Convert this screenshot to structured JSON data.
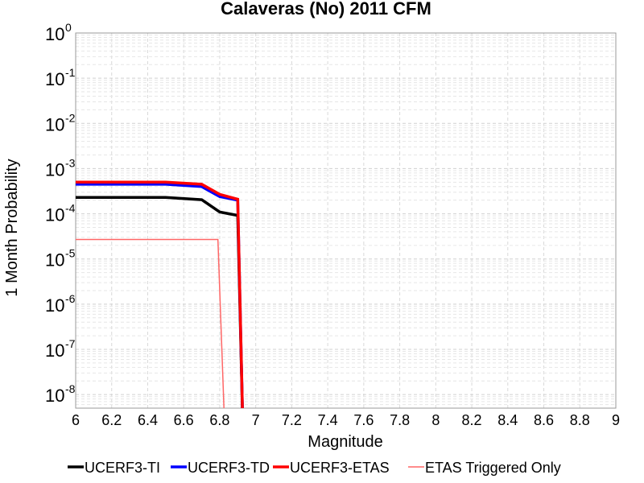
{
  "chart_data": {
    "type": "line",
    "title": "Calaveras (No) 2011 CFM",
    "xlabel": "Magnitude",
    "ylabel": "1 Month Probability",
    "xlim": [
      6,
      9
    ],
    "ylim_log10": [
      -8.3,
      0
    ],
    "y_scale": "log",
    "grid": true,
    "legend_position": "bottom",
    "x_ticks": [
      "6",
      "6.2",
      "6.4",
      "6.6",
      "6.8",
      "7",
      "7.2",
      "7.4",
      "7.6",
      "7.8",
      "8",
      "8.2",
      "8.4",
      "8.6",
      "8.8",
      "9"
    ],
    "y_ticks": [
      {
        "base": "10",
        "exp": "0"
      },
      {
        "base": "10",
        "exp": "-1"
      },
      {
        "base": "10",
        "exp": "-2"
      },
      {
        "base": "10",
        "exp": "-3"
      },
      {
        "base": "10",
        "exp": "-4"
      },
      {
        "base": "10",
        "exp": "-5"
      },
      {
        "base": "10",
        "exp": "-6"
      },
      {
        "base": "10",
        "exp": "-7"
      },
      {
        "base": "10",
        "exp": "-8"
      }
    ],
    "series": [
      {
        "name": "UCERF3-TI",
        "color": "#000000",
        "line_width": 3.5,
        "x": [
          6.0,
          6.5,
          6.7,
          6.8,
          6.9,
          6.93
        ],
        "y": [
          0.00023,
          0.00023,
          0.000205,
          0.00011,
          9.2e-05,
          1e-09
        ]
      },
      {
        "name": "UCERF3-TD",
        "color": "#0000ff",
        "line_width": 3.5,
        "x": [
          6.0,
          6.5,
          6.7,
          6.8,
          6.9,
          6.93
        ],
        "y": [
          0.00045,
          0.00045,
          0.0004,
          0.00024,
          0.0002,
          1e-09
        ]
      },
      {
        "name": "UCERF3-ETAS",
        "color": "#ff0000",
        "line_width": 3.5,
        "x": [
          6.0,
          6.5,
          6.7,
          6.8,
          6.9,
          6.93
        ],
        "y": [
          0.0005,
          0.0005,
          0.00045,
          0.00027,
          0.00021,
          1e-09
        ]
      },
      {
        "name": "ETAS Triggered Only",
        "color": "#ff6666",
        "line_width": 1.5,
        "x": [
          6.0,
          6.79,
          6.83
        ],
        "y": [
          2.7e-05,
          2.7e-05,
          1e-09
        ]
      }
    ]
  }
}
